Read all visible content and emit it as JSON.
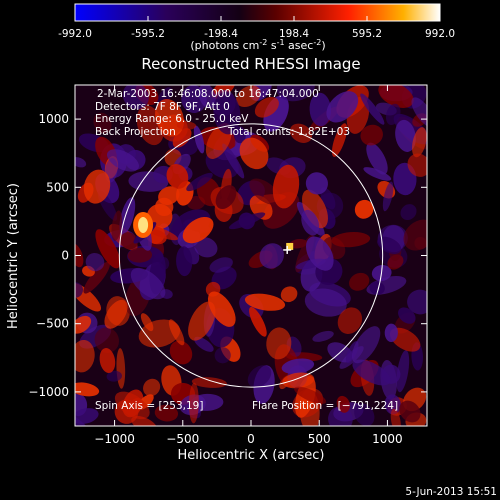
{
  "colorbar": {
    "ticks": [
      "-992.0",
      "-595.2",
      "-198.4",
      "198.4",
      "595.2",
      "992.0"
    ],
    "unit_main": "(photons cm",
    "unit_exp1": "-2",
    "unit_mid": " s",
    "unit_exp2": "-1",
    "unit_mid2": " asec",
    "unit_exp3": "-2",
    "unit_close": ")"
  },
  "chart_data": {
    "type": "heatmap",
    "title": "Reconstructed RHESSI Image",
    "xlabel": "Heliocentric X (arcsec)",
    "ylabel": "Heliocentric Y (arcsec)",
    "xlim": [
      -1290,
      1290
    ],
    "ylim": [
      -1250,
      1250
    ],
    "x_ticks": [
      -1000,
      -500,
      0,
      500,
      1000
    ],
    "y_ticks": [
      -1000,
      -500,
      0,
      500,
      1000
    ],
    "x_tick_labels": [
      "−1000",
      "−500",
      "0",
      "500",
      "1000"
    ],
    "y_tick_labels": [
      "−1000",
      "−500",
      "0",
      "500",
      "1000"
    ],
    "value_range": [
      -992.0,
      992.0
    ],
    "solar_limb_radius_arcsec": 965,
    "flare_position": [
      -791,
      224
    ],
    "bright_source": {
      "x": 280,
      "y": 70
    },
    "annotations": {
      "time": "2-Mar-2003 16:46:08.000 to 16:47:04.000",
      "detectors": "Detectors: 7F 8F 9F, Att 0",
      "energy": "Energy Range: 6.0 - 25.0 keV",
      "method": "Back Projection",
      "counts": "Total counts: 1.82E+03",
      "spin_axis": "Spin Axis = [253,19]",
      "flare_position_label": "Flare Position = [−791,224]"
    }
  },
  "footer": {
    "date": "5-Jun-2013 15:51"
  },
  "colors": {
    "background": "#000000",
    "text": "#ffffff"
  }
}
